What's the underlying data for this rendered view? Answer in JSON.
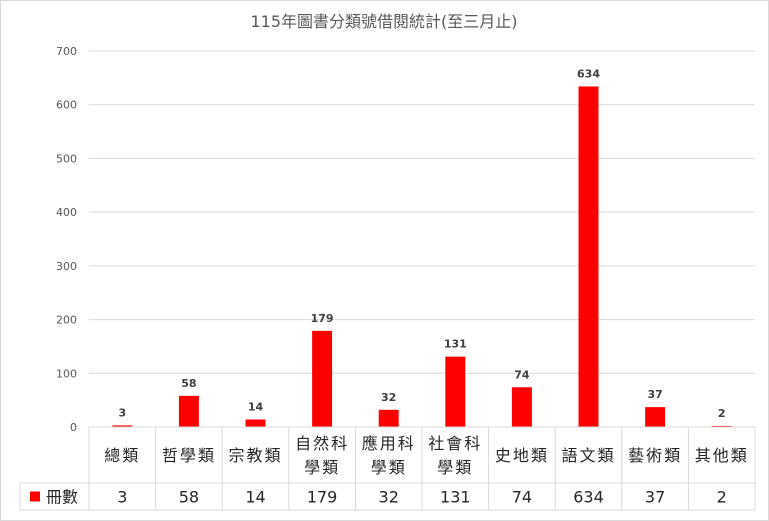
{
  "chart_data": {
    "type": "bar",
    "title": "115年圖書分類號借閱統計(至三月止)",
    "categories": [
      [
        "總類"
      ],
      [
        "哲學類"
      ],
      [
        "宗教類"
      ],
      [
        "自然科",
        "學類"
      ],
      [
        "應用科",
        "學類"
      ],
      [
        "社會科",
        "學類"
      ],
      [
        "史地類"
      ],
      [
        "語文類"
      ],
      [
        "藝術類"
      ],
      [
        "其他類"
      ]
    ],
    "series": [
      {
        "name": "冊數",
        "values": [
          3,
          58,
          14,
          179,
          32,
          131,
          74,
          634,
          37,
          2
        ]
      }
    ],
    "ylim": [
      0,
      700
    ],
    "yticks": [
      0,
      100,
      200,
      300,
      400,
      500,
      600,
      700
    ],
    "grid": true,
    "legend": "data-table",
    "color": "#ff0000"
  }
}
